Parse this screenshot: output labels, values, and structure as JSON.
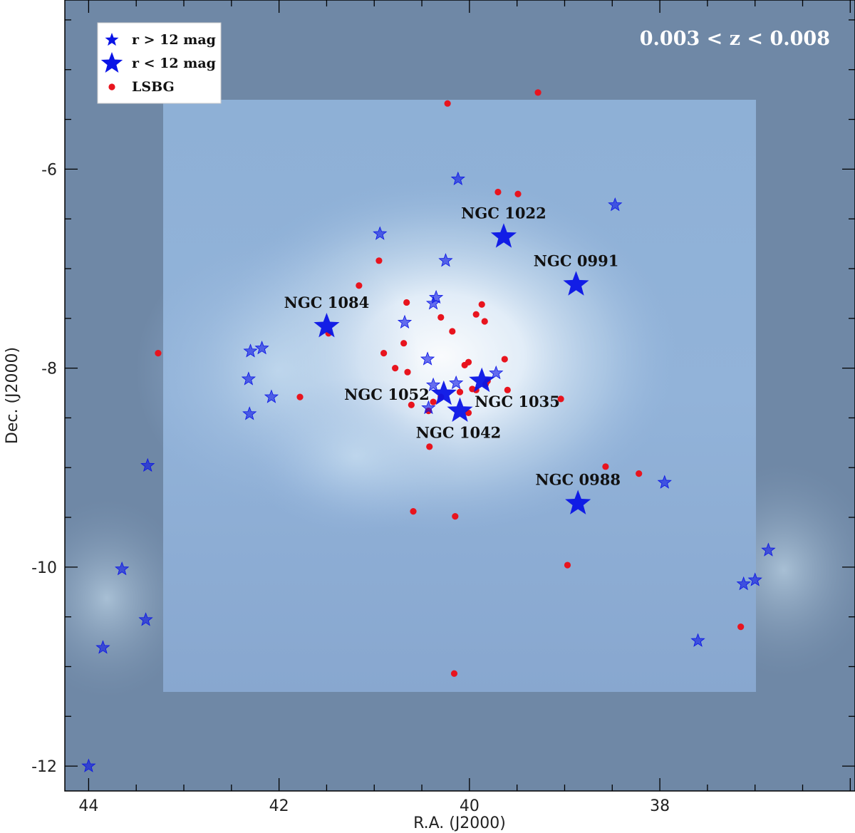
{
  "chart_data": {
    "type": "scatter",
    "xlabel": "R.A. (J2000)",
    "ylabel": "Dec. (J2000)",
    "xlim": [
      44.25,
      35.95
    ],
    "ylim": [
      -12.25,
      -4.3
    ],
    "x_ticks": [
      44,
      42,
      40,
      38
    ],
    "x_tick_labels": [
      "44",
      "42",
      "40",
      "38"
    ],
    "y_ticks": [
      -6,
      -8,
      -10,
      -12
    ],
    "y_tick_labels": [
      "-6",
      "-8",
      "-10",
      "-12"
    ],
    "annotation": "0.003 < z < 0.008",
    "legend": {
      "placement": "top-left",
      "entries": [
        {
          "label": "r > 12 mag",
          "marker": "small-star",
          "color": "#0a14e6"
        },
        {
          "label": "r < 12 mag",
          "marker": "large-star",
          "color": "#0a14e6"
        },
        {
          "label": "LSBG",
          "marker": "dot",
          "color": "#e8141e"
        }
      ]
    },
    "colors": {
      "star": "#0a14e6",
      "lsbg": "#e8141e",
      "outer_field": "#6f88a6",
      "inner_field": "#88a8cf",
      "overdensity": "#ffffff"
    },
    "bright_galaxies": [
      {
        "name": "NGC 1022",
        "x": 39.64,
        "y": -6.68,
        "label_pos": "above"
      },
      {
        "name": "NGC 0991",
        "x": 38.88,
        "y": -7.16,
        "label_pos": "above"
      },
      {
        "name": "NGC 1084",
        "x": 41.5,
        "y": -7.58,
        "label_pos": "above"
      },
      {
        "name": "NGC 1052",
        "x": 40.27,
        "y": -8.26,
        "label_pos": "left"
      },
      {
        "name": "NGC 1035",
        "x": 39.87,
        "y": -8.13,
        "label_pos": "below-right"
      },
      {
        "name": "NGC 1042",
        "x": 40.1,
        "y": -8.43,
        "label_pos": "below"
      },
      {
        "name": "NGC 0988",
        "x": 38.86,
        "y": -9.36,
        "label_pos": "above"
      }
    ],
    "faint_galaxies": [
      [
        40.12,
        -6.1
      ],
      [
        38.47,
        -6.36
      ],
      [
        40.94,
        -6.65
      ],
      [
        40.25,
        -6.92
      ],
      [
        40.35,
        -7.29
      ],
      [
        40.38,
        -7.35
      ],
      [
        40.68,
        -7.54
      ],
      [
        42.3,
        -7.83
      ],
      [
        42.18,
        -7.8
      ],
      [
        40.44,
        -7.91
      ],
      [
        42.32,
        -8.11
      ],
      [
        42.08,
        -8.29
      ],
      [
        39.72,
        -8.05
      ],
      [
        40.14,
        -8.15
      ],
      [
        40.38,
        -8.17
      ],
      [
        40.43,
        -8.4
      ],
      [
        42.31,
        -8.46
      ],
      [
        43.38,
        -8.98
      ],
      [
        37.95,
        -9.15
      ],
      [
        43.65,
        -10.02
      ],
      [
        43.4,
        -10.53
      ],
      [
        43.85,
        -10.81
      ],
      [
        36.86,
        -9.83
      ],
      [
        37.12,
        -10.17
      ],
      [
        37.0,
        -10.13
      ],
      [
        37.6,
        -10.74
      ],
      [
        44.0,
        -12.0
      ]
    ],
    "lsbg": [
      [
        40.23,
        -5.34
      ],
      [
        39.28,
        -5.23
      ],
      [
        39.7,
        -6.23
      ],
      [
        39.49,
        -6.25
      ],
      [
        40.95,
        -6.92
      ],
      [
        41.16,
        -7.17
      ],
      [
        40.66,
        -7.34
      ],
      [
        39.87,
        -7.36
      ],
      [
        40.3,
        -7.49
      ],
      [
        39.93,
        -7.46
      ],
      [
        39.84,
        -7.53
      ],
      [
        40.69,
        -7.75
      ],
      [
        40.18,
        -7.63
      ],
      [
        40.9,
        -7.85
      ],
      [
        40.78,
        -8.0
      ],
      [
        40.65,
        -8.04
      ],
      [
        40.05,
        -7.97
      ],
      [
        40.01,
        -7.94
      ],
      [
        39.81,
        -8.13
      ],
      [
        39.63,
        -7.91
      ],
      [
        40.1,
        -8.24
      ],
      [
        39.93,
        -8.22
      ],
      [
        39.97,
        -8.21
      ],
      [
        39.83,
        -8.16
      ],
      [
        39.6,
        -8.22
      ],
      [
        40.3,
        -8.29
      ],
      [
        40.38,
        -8.34
      ],
      [
        40.43,
        -8.43
      ],
      [
        40.61,
        -8.37
      ],
      [
        40.01,
        -8.45
      ],
      [
        41.78,
        -8.29
      ],
      [
        43.27,
        -7.85
      ],
      [
        40.42,
        -8.79
      ],
      [
        38.57,
        -8.99
      ],
      [
        38.22,
        -9.06
      ],
      [
        40.59,
        -9.44
      ],
      [
        40.15,
        -9.49
      ],
      [
        38.97,
        -9.98
      ],
      [
        37.15,
        -10.6
      ],
      [
        40.16,
        -11.07
      ],
      [
        39.04,
        -8.31
      ],
      [
        41.48,
        -7.65
      ]
    ]
  }
}
